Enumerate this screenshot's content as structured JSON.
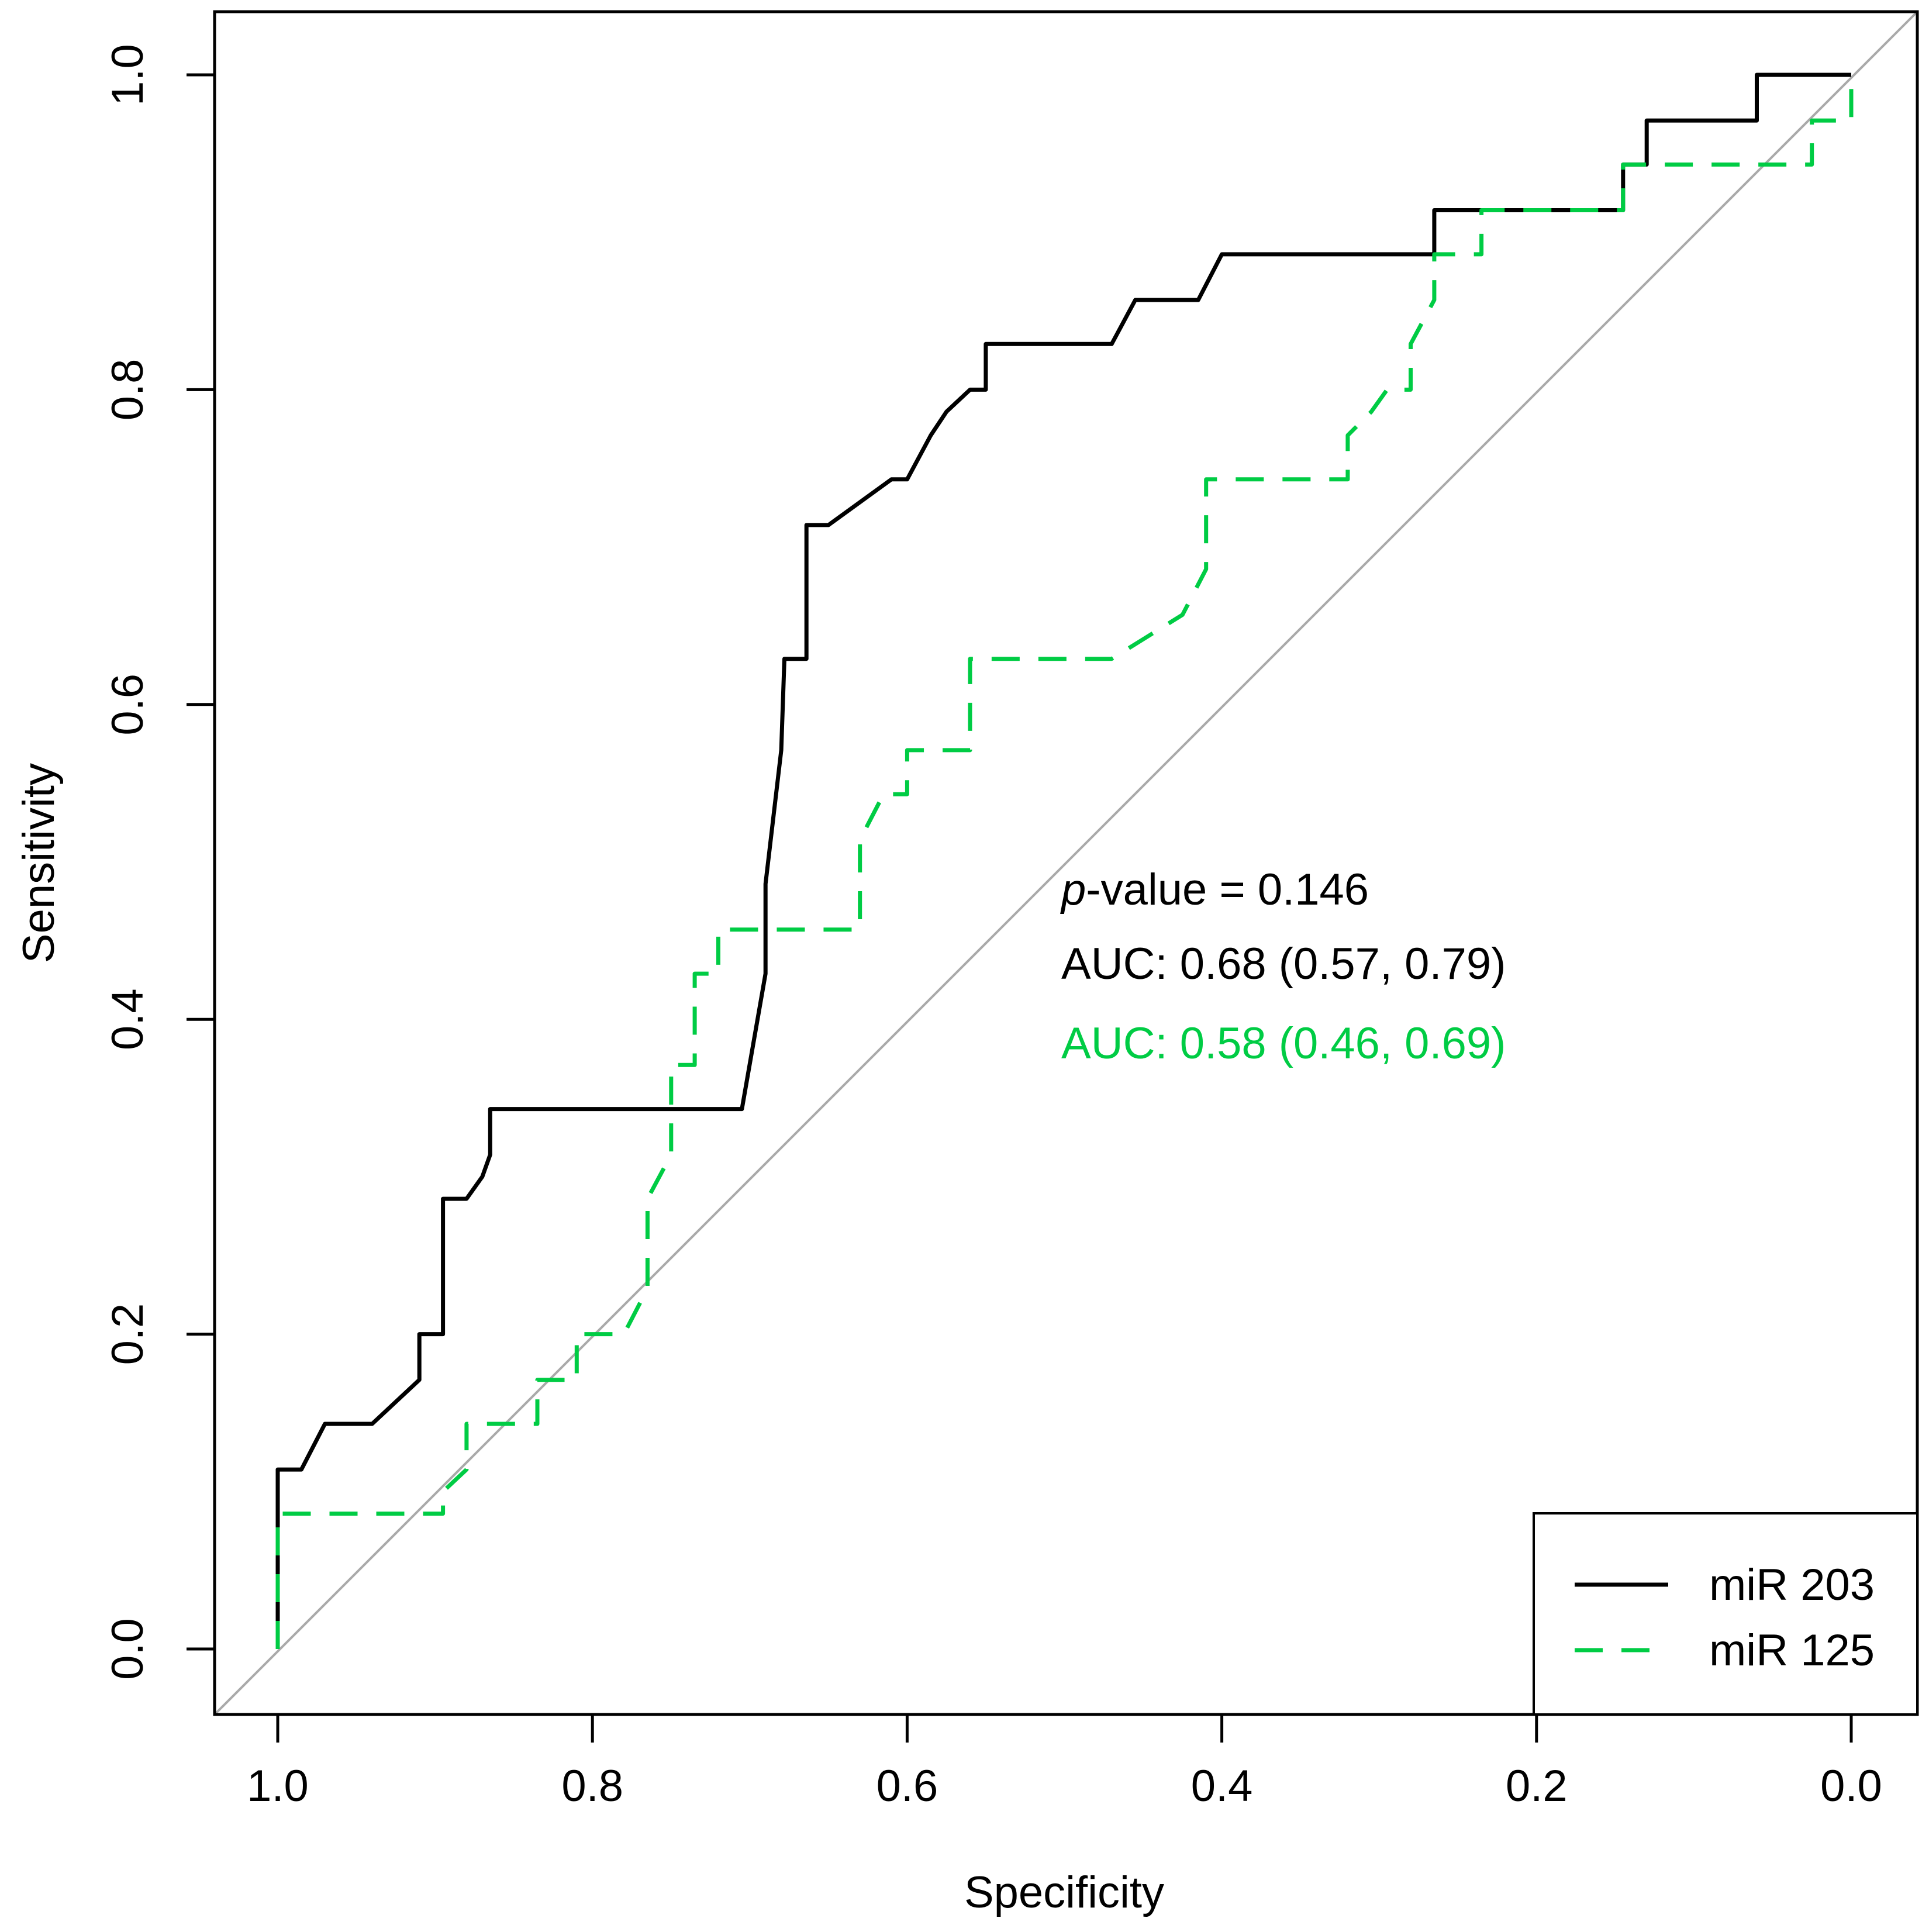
{
  "chart_data": {
    "type": "line",
    "title": "",
    "xlabel": "Specificity",
    "ylabel": "Sensitivity",
    "xlim": [
      1.0,
      0.0
    ],
    "ylim": [
      0.0,
      1.0
    ],
    "x_reversed": true,
    "grid": false,
    "x_ticks": [
      1.0,
      0.8,
      0.6,
      0.4,
      0.2,
      0.0
    ],
    "x_tick_labels": [
      "1.0",
      "0.8",
      "0.6",
      "0.4",
      "0.2",
      "0.0"
    ],
    "y_ticks": [
      0.0,
      0.2,
      0.4,
      0.6,
      0.8,
      1.0
    ],
    "y_tick_labels": [
      "0.0",
      "0.2",
      "0.4",
      "0.6",
      "0.8",
      "1.0"
    ],
    "reference_line": {
      "from": [
        1.0,
        0.0
      ],
      "to": [
        0.0,
        1.0
      ],
      "color": "#aaaaaa"
    },
    "legend": {
      "position": "bottom-right",
      "entries": [
        {
          "label": "miR 203",
          "color": "#000000",
          "style": "solid"
        },
        {
          "label": "miR 125",
          "color": "#00cc44",
          "style": "dashed"
        }
      ]
    },
    "annotations": {
      "pvalue_italic": "p",
      "pvalue_rest": "-value = 0.146",
      "auc_1": "AUC: 0.68 (0.57, 0.79)",
      "auc_2": "AUC: 0.58 (0.46, 0.69)",
      "auc_1_color": "#000000",
      "auc_2_color": "#00cc44"
    },
    "series": [
      {
        "name": "miR 203",
        "color": "#000000",
        "style": "solid",
        "specificity": [
          1.0,
          1.0,
          0.985,
          0.97,
          0.94,
          0.91,
          0.91,
          0.895,
          0.895,
          0.88,
          0.87,
          0.865,
          0.865,
          0.705,
          0.69,
          0.69,
          0.68,
          0.678,
          0.664,
          0.664,
          0.65,
          0.61,
          0.6,
          0.585,
          0.575,
          0.56,
          0.55,
          0.55,
          0.47,
          0.455,
          0.415,
          0.4,
          0.265,
          0.265,
          0.145,
          0.145,
          0.13,
          0.13,
          0.06,
          0.06,
          0.0
        ],
        "sensitivity": [
          0.0,
          0.114,
          0.114,
          0.143,
          0.143,
          0.171,
          0.2,
          0.2,
          0.286,
          0.286,
          0.3,
          0.314,
          0.343,
          0.343,
          0.429,
          0.486,
          0.571,
          0.629,
          0.629,
          0.714,
          0.714,
          0.743,
          0.743,
          0.771,
          0.786,
          0.8,
          0.8,
          0.829,
          0.829,
          0.857,
          0.857,
          0.886,
          0.886,
          0.914,
          0.914,
          0.943,
          0.943,
          0.971,
          0.971,
          1.0,
          1.0
        ]
      },
      {
        "name": "miR 125",
        "color": "#00cc44",
        "style": "dashed",
        "specificity": [
          1.0,
          1.0,
          0.895,
          0.895,
          0.88,
          0.88,
          0.835,
          0.835,
          0.81,
          0.81,
          0.78,
          0.765,
          0.765,
          0.75,
          0.75,
          0.735,
          0.735,
          0.72,
          0.72,
          0.63,
          0.63,
          0.615,
          0.6,
          0.6,
          0.56,
          0.56,
          0.47,
          0.425,
          0.41,
          0.41,
          0.32,
          0.32,
          0.305,
          0.295,
          0.28,
          0.28,
          0.265,
          0.265,
          0.235,
          0.235,
          0.145,
          0.145,
          0.025,
          0.025,
          0.0,
          0.0
        ],
        "sensitivity": [
          0.0,
          0.086,
          0.086,
          0.1,
          0.114,
          0.143,
          0.143,
          0.171,
          0.171,
          0.2,
          0.2,
          0.229,
          0.286,
          0.314,
          0.371,
          0.371,
          0.429,
          0.429,
          0.457,
          0.457,
          0.514,
          0.543,
          0.543,
          0.571,
          0.571,
          0.629,
          0.629,
          0.657,
          0.686,
          0.743,
          0.743,
          0.771,
          0.786,
          0.8,
          0.8,
          0.829,
          0.857,
          0.886,
          0.886,
          0.914,
          0.914,
          0.943,
          0.943,
          0.971,
          0.971,
          1.0
        ]
      }
    ]
  }
}
